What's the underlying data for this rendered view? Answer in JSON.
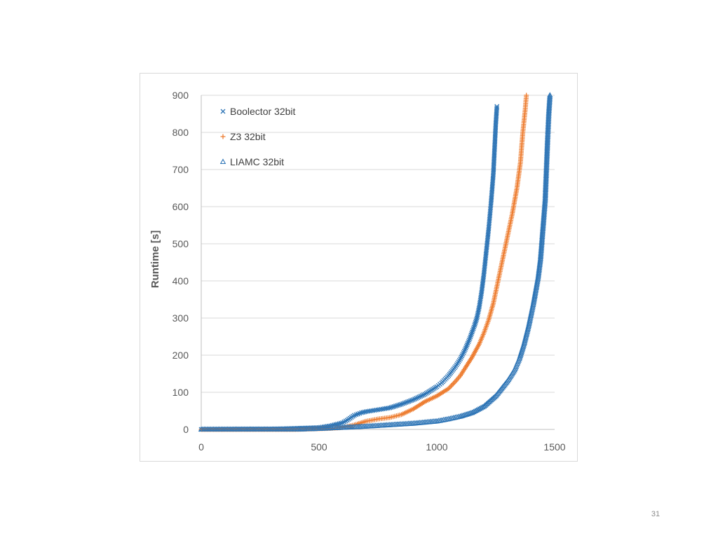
{
  "page_number": "31",
  "chart_data": {
    "type": "scatter",
    "title": "",
    "xlabel": "",
    "ylabel": "Runtime [s]",
    "xlim": [
      0,
      1500
    ],
    "ylim": [
      0,
      900
    ],
    "x_ticks": [
      "0",
      "500",
      "1000",
      "1500"
    ],
    "y_ticks": [
      "0",
      "100",
      "200",
      "300",
      "400",
      "500",
      "600",
      "700",
      "800",
      "900"
    ],
    "grid": true,
    "legend_position": "top-left",
    "series": [
      {
        "name": "Boolector 32bit",
        "marker": "x-cross",
        "color": "#2e75b6",
        "points": [
          [
            0,
            0
          ],
          [
            300,
            1
          ],
          [
            500,
            5
          ],
          [
            550,
            10
          ],
          [
            600,
            18
          ],
          [
            620,
            25
          ],
          [
            650,
            38
          ],
          [
            680,
            45
          ],
          [
            700,
            48
          ],
          [
            750,
            53
          ],
          [
            800,
            58
          ],
          [
            850,
            68
          ],
          [
            900,
            80
          ],
          [
            950,
            95
          ],
          [
            1000,
            115
          ],
          [
            1020,
            125
          ],
          [
            1050,
            145
          ],
          [
            1080,
            170
          ],
          [
            1100,
            190
          ],
          [
            1120,
            215
          ],
          [
            1140,
            245
          ],
          [
            1160,
            280
          ],
          [
            1170,
            300
          ],
          [
            1180,
            330
          ],
          [
            1190,
            370
          ],
          [
            1200,
            420
          ],
          [
            1210,
            480
          ],
          [
            1220,
            540
          ],
          [
            1230,
            610
          ],
          [
            1240,
            690
          ],
          [
            1250,
            820
          ],
          [
            1255,
            870
          ]
        ]
      },
      {
        "name": "Z3 32bit",
        "marker": "plus",
        "color": "#ed7d31",
        "points": [
          [
            0,
            0
          ],
          [
            400,
            0
          ],
          [
            550,
            3
          ],
          [
            600,
            5
          ],
          [
            650,
            12
          ],
          [
            700,
            22
          ],
          [
            750,
            28
          ],
          [
            800,
            32
          ],
          [
            850,
            40
          ],
          [
            900,
            55
          ],
          [
            950,
            75
          ],
          [
            1000,
            90
          ],
          [
            1050,
            110
          ],
          [
            1080,
            130
          ],
          [
            1100,
            145
          ],
          [
            1120,
            165
          ],
          [
            1150,
            195
          ],
          [
            1180,
            230
          ],
          [
            1200,
            260
          ],
          [
            1220,
            295
          ],
          [
            1240,
            340
          ],
          [
            1260,
            400
          ],
          [
            1280,
            460
          ],
          [
            1300,
            520
          ],
          [
            1320,
            580
          ],
          [
            1340,
            650
          ],
          [
            1355,
            720
          ],
          [
            1365,
            800
          ],
          [
            1375,
            860
          ],
          [
            1380,
            900
          ]
        ]
      },
      {
        "name": "LIAMC 32bit",
        "marker": "triangle",
        "color": "#2e75b6",
        "points": [
          [
            0,
            0
          ],
          [
            400,
            0
          ],
          [
            500,
            2
          ],
          [
            600,
            5
          ],
          [
            700,
            8
          ],
          [
            800,
            12
          ],
          [
            900,
            16
          ],
          [
            1000,
            22
          ],
          [
            1050,
            28
          ],
          [
            1100,
            35
          ],
          [
            1150,
            45
          ],
          [
            1200,
            62
          ],
          [
            1250,
            90
          ],
          [
            1300,
            130
          ],
          [
            1330,
            160
          ],
          [
            1350,
            190
          ],
          [
            1370,
            230
          ],
          [
            1390,
            280
          ],
          [
            1410,
            340
          ],
          [
            1430,
            410
          ],
          [
            1440,
            460
          ],
          [
            1450,
            540
          ],
          [
            1460,
            620
          ],
          [
            1465,
            700
          ],
          [
            1470,
            780
          ],
          [
            1475,
            850
          ],
          [
            1480,
            900
          ]
        ]
      }
    ]
  }
}
